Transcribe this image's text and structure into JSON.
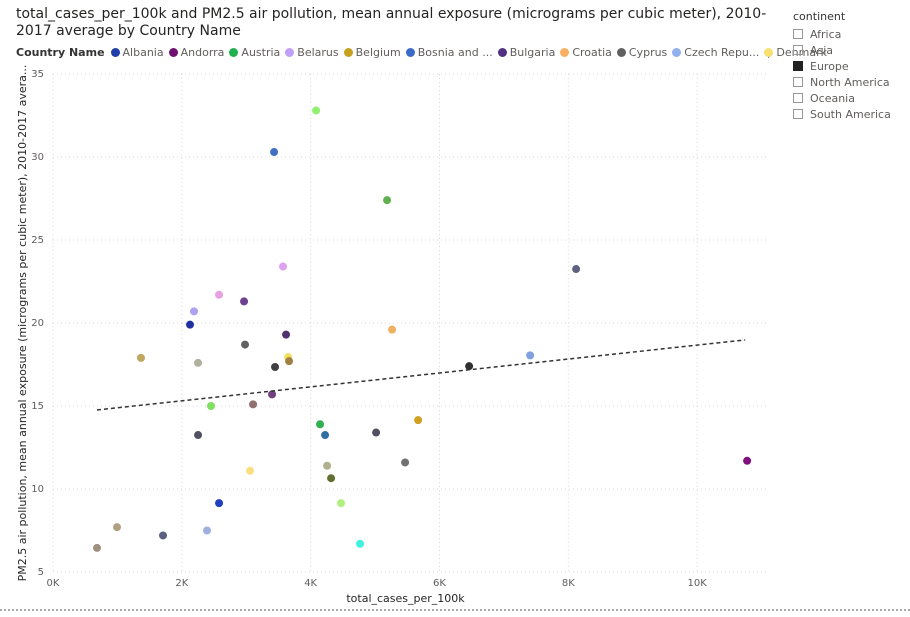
{
  "chart_data": {
    "type": "scatter",
    "title": "total_cases_per_100k and PM2.5 air pollution, mean annual exposure (micrograms per cubic meter), 2010-2017 average by Country Name",
    "x_label": "total_cases_per_100k",
    "y_label": "PM2.5 air pollution, mean annual exposure (micrograms per cubic meter), 2010-2017 avera...",
    "legend_title": "Country Name",
    "legend": [
      {
        "name": "Albania",
        "color": "#1f3ea8"
      },
      {
        "name": "Andorra",
        "color": "#701070"
      },
      {
        "name": "Austria",
        "color": "#20b050"
      },
      {
        "name": "Belarus",
        "color": "#c0a0f8"
      },
      {
        "name": "Belgium",
        "color": "#c8a020"
      },
      {
        "name": "Bosnia and ...",
        "color": "#3a6ac8"
      },
      {
        "name": "Bulgaria",
        "color": "#503080"
      },
      {
        "name": "Croatia",
        "color": "#f8b060"
      },
      {
        "name": "Cyprus",
        "color": "#606060"
      },
      {
        "name": "Czech Repu...",
        "color": "#90b0f0"
      },
      {
        "name": "Denmark",
        "color": "#f8e070"
      }
    ],
    "x": [
      683,
      994,
      1366,
      1708,
      2127,
      2189,
      2252,
      2252,
      2391,
      2453,
      2578,
      2578,
      2966,
      2981,
      3059,
      3106,
      3401,
      3432,
      3447,
      3571,
      3618,
      3649,
      3665,
      4084,
      4146,
      4224,
      4255,
      4317,
      4472,
      4767,
      5016,
      5186,
      5264,
      5466,
      5668,
      6460,
      7407,
      8121,
      10776
    ],
    "values": [
      6.45,
      7.7,
      17.9,
      7.2,
      19.9,
      20.7,
      17.6,
      13.25,
      7.5,
      15.0,
      21.7,
      9.15,
      21.3,
      18.7,
      11.1,
      15.1,
      15.7,
      30.3,
      17.35,
      23.4,
      19.3,
      17.95,
      17.7,
      32.8,
      13.9,
      13.25,
      11.4,
      10.65,
      9.15,
      6.7,
      13.4,
      27.4,
      19.6,
      11.6,
      14.15,
      17.4,
      18.05,
      23.25,
      11.7
    ],
    "colors": [
      "#a09080",
      "#b0a080",
      "#c0a860",
      "#5a6080",
      "#2030a0",
      "#b0a0f0",
      "#b0b0a0",
      "#505060",
      "#a0b0e0",
      "#80e060",
      "#e8a0e0",
      "#2040c0",
      "#704090",
      "#606060",
      "#f8e080",
      "#907070",
      "#704080",
      "#4070c0",
      "#404040",
      "#e0a0f0",
      "#503070",
      "#f0e060",
      "#a08040",
      "#90f070",
      "#30b050",
      "#3070a0",
      "#b0b090",
      "#607030",
      "#b0f080",
      "#40f0e0",
      "#505060",
      "#60b050",
      "#f0b060",
      "#707070",
      "#d0a020",
      "#303030",
      "#80a0e0",
      "#606080",
      "#801080"
    ],
    "trend": {
      "x": [
        683,
        10745
      ],
      "y": [
        14.76,
        18.98
      ],
      "color": "#333333"
    },
    "xlim": [
      0,
      11100
    ],
    "ylim": [
      5,
      35
    ],
    "xticks": [
      {
        "value": 0,
        "label": "0K"
      },
      {
        "value": 2000,
        "label": "2K"
      },
      {
        "value": 4000,
        "label": "4K"
      },
      {
        "value": 6000,
        "label": "6K"
      },
      {
        "value": 8000,
        "label": "8K"
      },
      {
        "value": 10000,
        "label": "10K"
      }
    ],
    "yticks": [
      5,
      10,
      15,
      20,
      25,
      30,
      35
    ],
    "grid": true
  },
  "slicer": {
    "title": "continent",
    "items": [
      "Africa",
      "Asia",
      "Europe",
      "North America",
      "Oceania",
      "South America"
    ],
    "checked": [
      false,
      false,
      true,
      false,
      false,
      false
    ]
  }
}
